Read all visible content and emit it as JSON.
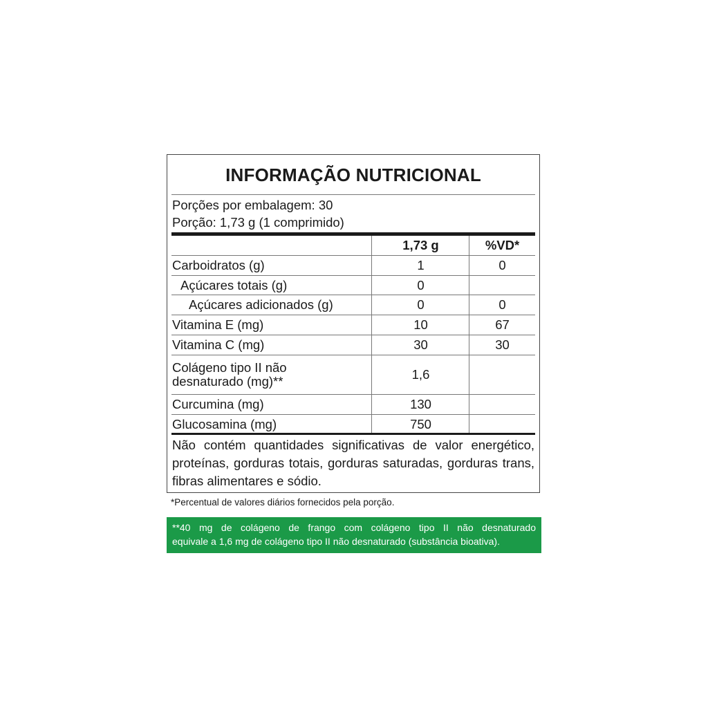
{
  "title": "INFORMAÇÃO NUTRICIONAL",
  "servings_per_package": "Porções por embalagem: 30",
  "serving_size": "Porção: 1,73 g (1 comprimido)",
  "table": {
    "headers": [
      "",
      "1,73 g",
      "%VD*"
    ],
    "rows": [
      {
        "name": "Carboidratos (g)",
        "amount": "1",
        "dv": "0"
      },
      {
        "name": "Açúcares totais (g)",
        "amount": "0",
        "dv": ""
      },
      {
        "name": "Açúcares adicionados (g)",
        "amount": "0",
        "dv": "0"
      },
      {
        "name": "Vitamina E (mg)",
        "amount": "10",
        "dv": "67"
      },
      {
        "name": "Vitamina C (mg)",
        "amount": "30",
        "dv": "30"
      },
      {
        "name": "Colágeno tipo II não desnaturado (mg)**",
        "amount": "1,6",
        "dv": ""
      },
      {
        "name": "Curcumina (mg)",
        "amount": "130",
        "dv": ""
      },
      {
        "name": "Glucosamina (mg)",
        "amount": "750",
        "dv": ""
      }
    ]
  },
  "note": "Não contém quantidades significativas de valor energético, proteínas, gorduras totais, gorduras saturadas, gorduras trans, fibras alimentares e sódio.",
  "footnote": "*Percentual de valores diários fornecidos pela porção.",
  "green_note": {
    "line1": "**40 mg de colágeno de frango com colágeno tipo II não desnaturado",
    "line2": "equivale a 1,6 mg de colágeno tipo II não desnaturado (substância bioativa).",
    "color": "#1b9a48"
  }
}
